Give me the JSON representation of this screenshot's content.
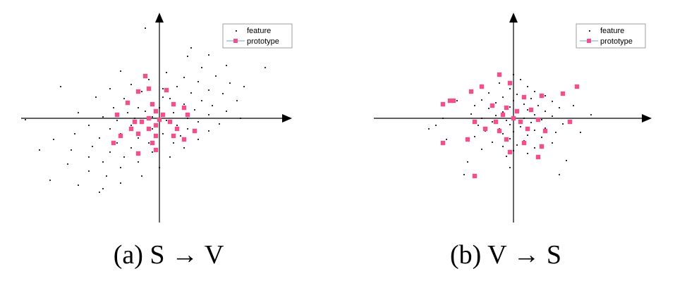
{
  "chart_data": [
    {
      "type": "scatter",
      "caption": "(a) S → V",
      "legend": {
        "placement": "top-right",
        "entries": [
          "feature",
          "prototype"
        ]
      },
      "grid": false,
      "xlim": [
        -195,
        185
      ],
      "ylim": [
        -155,
        155
      ],
      "series": [
        {
          "name": "feature",
          "points": [
            [
              -20,
              128
            ],
            [
              45,
              100
            ],
            [
              70,
              90
            ],
            [
              40,
              88
            ],
            [
              95,
              75
            ],
            [
              60,
              72
            ],
            [
              150,
              72
            ],
            [
              -55,
              67
            ],
            [
              10,
              65
            ],
            [
              80,
              60
            ],
            [
              35,
              58
            ],
            [
              -15,
              55
            ],
            [
              55,
              52
            ],
            [
              100,
              50
            ],
            [
              -40,
              48
            ],
            [
              25,
              45
            ],
            [
              120,
              45
            ],
            [
              -70,
              42
            ],
            [
              5,
              42
            ],
            [
              70,
              40
            ],
            [
              -25,
              38
            ],
            [
              45,
              36
            ],
            [
              90,
              35
            ],
            [
              -90,
              30
            ],
            [
              -50,
              28
            ],
            [
              15,
              28
            ],
            [
              60,
              25
            ],
            [
              110,
              25
            ],
            [
              -10,
              22
            ],
            [
              35,
              20
            ],
            [
              75,
              18
            ],
            [
              -65,
              15
            ],
            [
              -30,
              15
            ],
            [
              0,
              15
            ],
            [
              50,
              12
            ],
            [
              95,
              10
            ],
            [
              -115,
              8
            ],
            [
              -45,
              8
            ],
            [
              20,
              8
            ],
            [
              70,
              5
            ],
            [
              -80,
              2
            ],
            [
              -10,
              2
            ],
            [
              40,
              0
            ],
            [
              115,
              0
            ],
            [
              -60,
              -3
            ],
            [
              -25,
              -3
            ],
            [
              10,
              -3
            ],
            [
              55,
              -5
            ],
            [
              85,
              -8
            ],
            [
              -100,
              -10
            ],
            [
              -40,
              -10
            ],
            [
              25,
              -10
            ],
            [
              -70,
              -15
            ],
            [
              -10,
              -15
            ],
            [
              40,
              -15
            ],
            [
              70,
              -18
            ],
            [
              -120,
              -22
            ],
            [
              -55,
              -22
            ],
            [
              5,
              -22
            ],
            [
              30,
              -25
            ],
            [
              -85,
              -28
            ],
            [
              -30,
              -28
            ],
            [
              55,
              -30
            ],
            [
              -150,
              -30
            ],
            [
              -60,
              -35
            ],
            [
              -15,
              -35
            ],
            [
              20,
              -35
            ],
            [
              -95,
              -40
            ],
            [
              -40,
              -42
            ],
            [
              35,
              -42
            ],
            [
              -125,
              -45
            ],
            [
              -70,
              -48
            ],
            [
              -10,
              -48
            ],
            [
              -100,
              -55
            ],
            [
              -50,
              -55
            ],
            [
              15,
              -55
            ],
            [
              -80,
              -62
            ],
            [
              -30,
              -62
            ],
            [
              -130,
              -65
            ],
            [
              -55,
              -70
            ],
            [
              0,
              -70
            ],
            [
              -100,
              -75
            ],
            [
              -75,
              -82
            ],
            [
              -25,
              -82
            ],
            [
              -155,
              -88
            ],
            [
              -55,
              -92
            ],
            [
              -115,
              -95
            ],
            [
              -80,
              -100
            ],
            [
              -170,
              -45
            ],
            [
              -190,
              -2
            ],
            [
              -85,
              -105
            ],
            [
              -140,
              45
            ],
            [
              -20,
              10
            ],
            [
              -5,
              -8
            ],
            [
              -35,
              0
            ],
            [
              5,
              30
            ]
          ]
        },
        {
          "name": "prototype",
          "points": [
            [
              -20,
              60
            ],
            [
              -15,
              42
            ],
            [
              -30,
              38
            ],
            [
              10,
              40
            ],
            [
              -45,
              22
            ],
            [
              -10,
              20
            ],
            [
              20,
              20
            ],
            [
              35,
              15
            ],
            [
              -60,
              5
            ],
            [
              -5,
              10
            ],
            [
              5,
              5
            ],
            [
              -15,
              0
            ],
            [
              -35,
              -5
            ],
            [
              -25,
              -5
            ],
            [
              0,
              -2
            ],
            [
              -5,
              -10
            ],
            [
              15,
              -5
            ],
            [
              40,
              5
            ],
            [
              -40,
              -15
            ],
            [
              -15,
              -15
            ],
            [
              25,
              -15
            ],
            [
              -55,
              -25
            ],
            [
              -30,
              -22
            ],
            [
              -5,
              -25
            ],
            [
              20,
              -25
            ],
            [
              50,
              -18
            ],
            [
              -10,
              -35
            ],
            [
              35,
              -30
            ],
            [
              -65,
              -35
            ],
            [
              -5,
              -45
            ],
            [
              -30,
              -50
            ]
          ]
        }
      ]
    },
    {
      "type": "scatter",
      "caption": "(b) V → S",
      "legend": {
        "placement": "top-right",
        "entries": [
          "feature",
          "prototype"
        ]
      },
      "grid": false,
      "xlim": [
        -195,
        185
      ],
      "ylim": [
        -155,
        155
      ],
      "series": [
        {
          "name": "feature",
          "points": [
            [
              0,
              62
            ],
            [
              10,
              55
            ],
            [
              -20,
              50
            ],
            [
              20,
              45
            ],
            [
              -5,
              42
            ],
            [
              30,
              38
            ],
            [
              -35,
              36
            ],
            [
              5,
              34
            ],
            [
              45,
              32
            ],
            [
              -15,
              30
            ],
            [
              25,
              28
            ],
            [
              -45,
              26
            ],
            [
              0,
              25
            ],
            [
              55,
              24
            ],
            [
              -25,
              22
            ],
            [
              15,
              20
            ],
            [
              -55,
              18
            ],
            [
              35,
              18
            ],
            [
              -5,
              16
            ],
            [
              65,
              15
            ],
            [
              -35,
              14
            ],
            [
              20,
              12
            ],
            [
              45,
              10
            ],
            [
              -15,
              9
            ],
            [
              5,
              8
            ],
            [
              -60,
              6
            ],
            [
              30,
              5
            ],
            [
              -25,
              4
            ],
            [
              55,
              3
            ],
            [
              0,
              2
            ],
            [
              -45,
              0
            ],
            [
              15,
              0
            ],
            [
              40,
              -2
            ],
            [
              -10,
              -3
            ],
            [
              -30,
              -5
            ],
            [
              25,
              -6
            ],
            [
              70,
              -8
            ],
            [
              -5,
              -9
            ],
            [
              -50,
              -10
            ],
            [
              10,
              -12
            ],
            [
              45,
              -14
            ],
            [
              -20,
              -15
            ],
            [
              30,
              -17
            ],
            [
              -40,
              -18
            ],
            [
              0,
              -19
            ],
            [
              60,
              -20
            ],
            [
              -15,
              -22
            ],
            [
              20,
              -24
            ],
            [
              -55,
              -26
            ],
            [
              40,
              -27
            ],
            [
              -5,
              -29
            ],
            [
              15,
              -32
            ],
            [
              -30,
              -34
            ],
            [
              55,
              -35
            ],
            [
              5,
              -38
            ],
            [
              -15,
              -40
            ],
            [
              30,
              -42
            ],
            [
              -45,
              -44
            ],
            [
              0,
              -46
            ],
            [
              20,
              -50
            ],
            [
              -10,
              -54
            ],
            [
              35,
              -55
            ],
            [
              -65,
              -62
            ],
            [
              -5,
              -70
            ],
            [
              -95,
              -30
            ],
            [
              -80,
              25
            ],
            [
              85,
              18
            ],
            [
              95,
              -20
            ],
            [
              -100,
              0
            ],
            [
              110,
              5
            ],
            [
              -110,
              -10
            ],
            [
              -70,
              -80
            ],
            [
              75,
              -60
            ],
            [
              -120,
              -15
            ],
            [
              65,
              -80
            ]
          ]
        },
        {
          "name": "prototype",
          "points": [
            [
              -20,
              62
            ],
            [
              -45,
              45
            ],
            [
              -60,
              38
            ],
            [
              -90,
              25
            ],
            [
              -5,
              50
            ],
            [
              15,
              30
            ],
            [
              40,
              32
            ],
            [
              70,
              35
            ],
            [
              90,
              45
            ],
            [
              -30,
              18
            ],
            [
              -10,
              15
            ],
            [
              5,
              10
            ],
            [
              25,
              12
            ],
            [
              -15,
              5
            ],
            [
              0,
              0
            ],
            [
              -25,
              -5
            ],
            [
              10,
              -5
            ],
            [
              35,
              -2
            ],
            [
              -55,
              -5
            ],
            [
              -40,
              -15
            ],
            [
              -20,
              -18
            ],
            [
              20,
              -15
            ],
            [
              45,
              -18
            ],
            [
              -65,
              -30
            ],
            [
              -10,
              -30
            ],
            [
              15,
              -35
            ],
            [
              40,
              -40
            ],
            [
              -5,
              -48
            ],
            [
              35,
              -55
            ],
            [
              -55,
              -82
            ],
            [
              -100,
              -35
            ],
            [
              -85,
              25
            ],
            [
              80,
              -5
            ],
            [
              -100,
              20
            ]
          ]
        }
      ]
    }
  ]
}
